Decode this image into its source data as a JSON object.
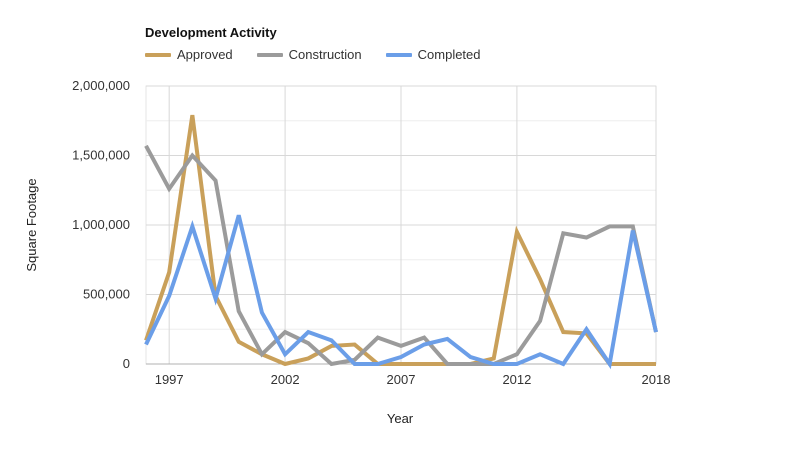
{
  "chart_data": {
    "type": "line",
    "title": "Development Activity",
    "xlabel": "Year",
    "ylabel": "Square Footage",
    "x": [
      1996,
      1997,
      1998,
      1999,
      2000,
      2001,
      2002,
      2003,
      2004,
      2005,
      2006,
      2007,
      2008,
      2009,
      2010,
      2011,
      2012,
      2013,
      2014,
      2015,
      2016,
      2017,
      2018
    ],
    "xlim": [
      1996,
      2018
    ],
    "x_ticks": [
      {
        "value": 1997,
        "label": "1997"
      },
      {
        "value": 2002,
        "label": "2002"
      },
      {
        "value": 2007,
        "label": "2007"
      },
      {
        "value": 2012,
        "label": "2012"
      },
      {
        "value": 2018,
        "label": "2018"
      }
    ],
    "ylim": [
      0,
      2000000
    ],
    "y_ticks": [
      {
        "value": 0,
        "label": "0"
      },
      {
        "value": 500000,
        "label": "500,000"
      },
      {
        "value": 1000000,
        "label": "1,000,000"
      },
      {
        "value": 1500000,
        "label": "1,500,000"
      },
      {
        "value": 2000000,
        "label": "2,000,000"
      }
    ],
    "grid": true,
    "legend_position": "top-left",
    "series": [
      {
        "name": "Approved",
        "color": "#c9a05a",
        "values": [
          170000,
          660000,
          1790000,
          490000,
          160000,
          70000,
          0,
          40000,
          130000,
          140000,
          0,
          0,
          0,
          0,
          0,
          40000,
          950000,
          610000,
          230000,
          220000,
          0,
          0,
          0
        ]
      },
      {
        "name": "Construction",
        "color": "#9b9b9b",
        "values": [
          1570000,
          1260000,
          1500000,
          1320000,
          380000,
          70000,
          230000,
          150000,
          0,
          30000,
          190000,
          130000,
          190000,
          0,
          0,
          0,
          70000,
          310000,
          940000,
          910000,
          990000,
          990000,
          230000
        ]
      },
      {
        "name": "Completed",
        "color": "#6b9ee8",
        "values": [
          140000,
          490000,
          990000,
          470000,
          1070000,
          370000,
          70000,
          230000,
          170000,
          0,
          0,
          50000,
          140000,
          180000,
          50000,
          0,
          0,
          70000,
          0,
          250000,
          0,
          960000,
          230000
        ]
      }
    ]
  }
}
